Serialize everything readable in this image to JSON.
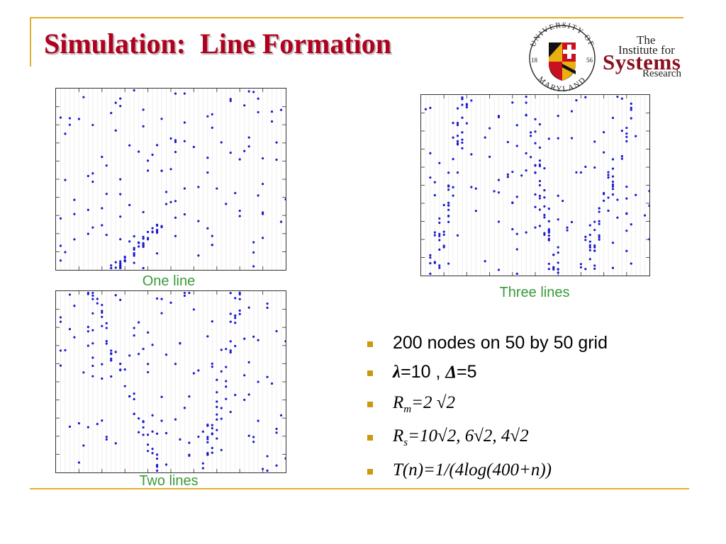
{
  "slide": {
    "title": "Simulation:  Line Formation",
    "logo": {
      "university_arc_top": "UNIVERSITY OF",
      "university_arc_bottom": "MARYLAND",
      "year_left": "18",
      "year_right": "56",
      "institute_line1": "The",
      "institute_line2": "Institute for",
      "institute_line3": "Systems",
      "institute_line4": "Research"
    },
    "plots": [
      {
        "caption": "One line"
      },
      {
        "caption": "Three lines"
      },
      {
        "caption": "Two lines"
      }
    ],
    "bullets": {
      "b1": "200 nodes on 50 by 50 grid",
      "b2_lambda": "λ",
      "b2_rest": "=10 , ",
      "b2_delta": "Δ",
      "b2_rest2": "=5",
      "b3_R": "R",
      "b3_sub": "m",
      "b3_rest": "=2 √2",
      "b4_R": "R",
      "b4_sub": "s",
      "b4_rest": "=10√2, 6√2, 4√2",
      "b5": "T(n)=1/(4log(400+n))"
    },
    "colors": {
      "title": "#b0001e",
      "rule": "#e0b030",
      "caption": "#3a9a3a",
      "bullet_square": "#c89a10",
      "dot": "#1a1ad0",
      "highlight": "#d00000"
    }
  }
}
